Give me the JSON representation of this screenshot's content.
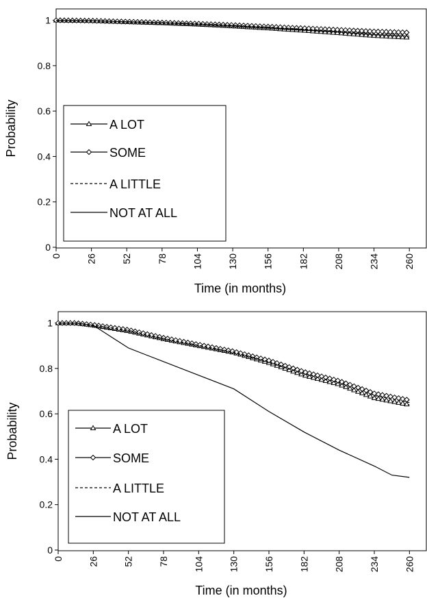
{
  "chart_data": [
    {
      "type": "line",
      "panel": "top",
      "xlabel": "Time (in months)",
      "ylabel": "Probability",
      "xlim": [
        0,
        273
      ],
      "ylim": [
        0,
        1.05
      ],
      "xticks": [
        0,
        26,
        52,
        78,
        104,
        130,
        156,
        182,
        208,
        234,
        260
      ],
      "yticks": [
        0,
        0.2,
        0.4,
        0.6,
        0.8,
        1
      ],
      "ytick_labels": [
        "0",
        "0.2",
        "0.4",
        "0.6",
        "0.8",
        "1"
      ],
      "grid": false,
      "legend_position": "bottom-left",
      "series": [
        {
          "name": "A LOT",
          "marker": "triangle",
          "dash": "solid",
          "x": [
            0,
            26,
            52,
            78,
            104,
            130,
            156,
            182,
            208,
            234,
            260
          ],
          "y": [
            1.0,
            0.998,
            0.993,
            0.988,
            0.982,
            0.974,
            0.965,
            0.955,
            0.944,
            0.932,
            0.924
          ]
        },
        {
          "name": "SOME",
          "marker": "diamond",
          "dash": "solid",
          "x": [
            0,
            26,
            52,
            78,
            104,
            130,
            156,
            182,
            208,
            234,
            260
          ],
          "y": [
            1.0,
            0.998,
            0.994,
            0.99,
            0.985,
            0.979,
            0.972,
            0.965,
            0.958,
            0.951,
            0.946
          ]
        },
        {
          "name": "A LITTLE",
          "marker": "none",
          "dash": "dashed",
          "x": [
            0,
            26,
            52,
            78,
            104,
            130,
            156,
            182,
            208,
            234,
            260
          ],
          "y": [
            1.0,
            0.998,
            0.994,
            0.99,
            0.985,
            0.978,
            0.97,
            0.961,
            0.952,
            0.943,
            0.937
          ]
        },
        {
          "name": "NOT AT ALL",
          "marker": "none",
          "dash": "solid",
          "x": [
            0,
            26,
            52,
            78,
            104,
            130,
            156,
            182,
            208,
            234,
            260
          ],
          "y": [
            1.0,
            0.998,
            0.993,
            0.989,
            0.983,
            0.976,
            0.968,
            0.958,
            0.948,
            0.937,
            0.93
          ]
        }
      ]
    },
    {
      "type": "line",
      "panel": "bottom",
      "xlabel": "Time (in months)",
      "ylabel": "Probability",
      "xlim": [
        0,
        273
      ],
      "ylim": [
        0,
        1.05
      ],
      "xticks": [
        0,
        26,
        52,
        78,
        104,
        130,
        156,
        182,
        208,
        234,
        260
      ],
      "yticks": [
        0,
        0.2,
        0.4,
        0.6,
        0.8,
        1
      ],
      "ytick_labels": [
        "0",
        "0.2",
        "0.4",
        "0.6",
        "0.8",
        "1"
      ],
      "grid": false,
      "legend_position": "bottom-left",
      "series": [
        {
          "name": "A LOT",
          "marker": "triangle",
          "dash": "solid",
          "x": [
            0,
            13,
            26,
            52,
            78,
            104,
            130,
            156,
            182,
            208,
            234,
            260
          ],
          "y": [
            1.0,
            1.0,
            0.99,
            0.965,
            0.93,
            0.9,
            0.87,
            0.825,
            0.77,
            0.73,
            0.67,
            0.64
          ]
        },
        {
          "name": "SOME",
          "marker": "diamond",
          "dash": "solid",
          "x": [
            0,
            13,
            26,
            52,
            78,
            104,
            130,
            156,
            182,
            208,
            234,
            260
          ],
          "y": [
            1.0,
            1.0,
            0.992,
            0.97,
            0.935,
            0.905,
            0.875,
            0.835,
            0.785,
            0.745,
            0.69,
            0.66
          ]
        },
        {
          "name": "A LITTLE",
          "marker": "none",
          "dash": "dashed",
          "x": [
            0,
            13,
            26,
            52,
            78,
            104,
            130,
            156,
            182,
            208,
            234,
            260
          ],
          "y": [
            1.0,
            1.0,
            0.991,
            0.968,
            0.932,
            0.902,
            0.872,
            0.83,
            0.777,
            0.737,
            0.68,
            0.65
          ]
        },
        {
          "name": "NOT AT ALL",
          "marker": "none",
          "dash": "solid",
          "x": [
            0,
            13,
            26,
            39,
            52,
            65,
            78,
            104,
            130,
            156,
            182,
            208,
            234,
            247,
            260
          ],
          "y": [
            1.0,
            1.0,
            0.99,
            0.94,
            0.89,
            0.86,
            0.83,
            0.77,
            0.71,
            0.61,
            0.52,
            0.44,
            0.37,
            0.33,
            0.32
          ]
        }
      ]
    }
  ]
}
